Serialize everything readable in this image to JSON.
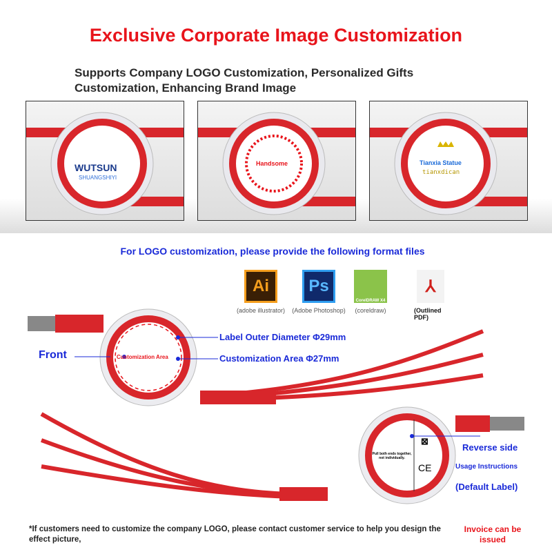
{
  "header": {
    "title": "Exclusive Corporate Image Customization",
    "subtitle": "Supports Company LOGO Customization, Personalized Gifts Customization, Enhancing Brand Image"
  },
  "samples": [
    {
      "logo_line1": "WUTSUN",
      "logo_line2": "SHUANGSHIYI"
    },
    {
      "logo_line1": "Handsome"
    },
    {
      "logo_line1": "Tianxia Statue",
      "logo_line2": "tianxdican"
    }
  ],
  "formats": {
    "heading": "For LOGO customization, please provide the following format files",
    "items": [
      {
        "icon": "Ai",
        "label": "(adobe illustrator)",
        "color": "#f59e1d"
      },
      {
        "icon": "Ps",
        "label": "(Adobe Photoshop)",
        "color": "#2f9ef0"
      },
      {
        "icon": "coreldraw-icon",
        "caption": "CorelDRAW X4",
        "label": "(coreldraw)"
      },
      {
        "icon": "pdf-icon",
        "label": "(Outlined PDF)"
      }
    ]
  },
  "front": {
    "label": "Front",
    "outer": "Label Outer Diameter Φ29mm",
    "area": "Customization Area Φ27mm",
    "center": "Customization Area"
  },
  "reverse": {
    "label": "Reverse side",
    "usage": "Usage Instructions",
    "default": "(Default Label)",
    "instr": "Pull both ends together, not individually."
  },
  "footer": {
    "note": "*If customers need to customize the company LOGO, please contact customer service to help you design the effect picture,",
    "invoice": "Invoice can be issued"
  },
  "colors": {
    "red": "#e8141b",
    "blue": "#1a2ad8",
    "cable": "#d8262b"
  }
}
